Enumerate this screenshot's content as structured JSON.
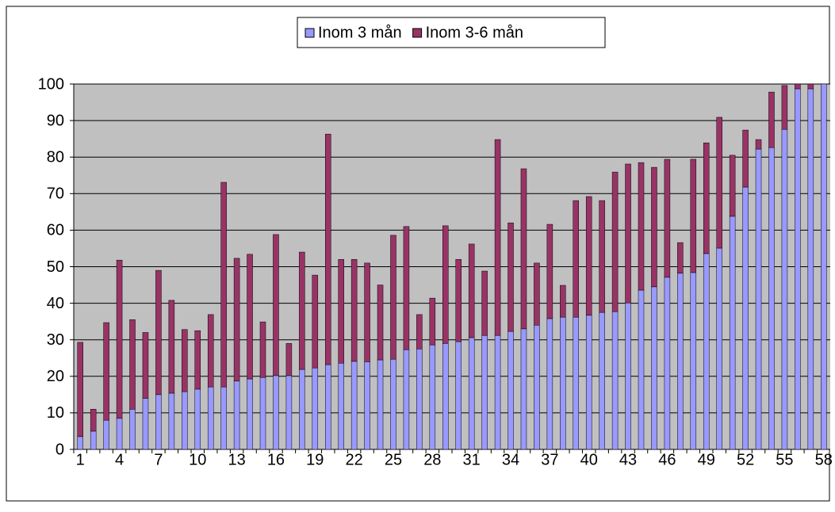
{
  "chart_data": {
    "type": "stacked_bar",
    "categories": [
      "1",
      null,
      null,
      "4",
      null,
      null,
      "7",
      null,
      null,
      "10",
      null,
      null,
      "13",
      null,
      null,
      "16",
      null,
      null,
      "19",
      null,
      null,
      "22",
      null,
      null,
      "25",
      null,
      null,
      "28",
      null,
      null,
      "31",
      null,
      null,
      "34",
      null,
      null,
      "37",
      null,
      null,
      "40",
      null,
      null,
      "43",
      null,
      null,
      "46",
      null,
      null,
      "49",
      null,
      null,
      "52",
      null,
      null,
      "55",
      null,
      null,
      "58"
    ],
    "series": [
      {
        "name": "Inom 3 mån",
        "color": "#9999ff",
        "values": [
          3.5,
          5,
          8,
          8.5,
          11,
          14,
          15,
          15.4,
          15.8,
          16.5,
          17.1,
          17.1,
          18.7,
          19.3,
          19.7,
          20.2,
          20.2,
          21.9,
          22.3,
          23.2,
          23.6,
          24.1,
          24,
          24.5,
          24.7,
          27.3,
          27.5,
          28.6,
          29,
          29.5,
          30.6,
          31.2,
          31.2,
          32.3,
          33,
          34,
          35.8,
          36.2,
          36.2,
          36.7,
          37.5,
          37.7,
          40.1,
          43.6,
          44.5,
          47.1,
          48.2,
          48.4,
          53.6,
          55.1,
          63.8,
          71.8,
          82.2,
          82.6,
          87.6,
          98.7,
          98.7,
          100
        ]
      },
      {
        "name": "Inom 3-6 mån",
        "color": "#993366",
        "values": [
          25.8,
          6,
          26.7,
          43.3,
          24.5,
          18,
          34,
          25.4,
          17,
          16,
          19.8,
          56,
          33.6,
          34.1,
          15.2,
          38.6,
          8.8,
          32.1,
          25.4,
          63.1,
          28.4,
          27.9,
          27,
          20.5,
          33.9,
          33.7,
          9.4,
          12.8,
          32.2,
          22.5,
          25.6,
          17.6,
          53.6,
          29.7,
          43.8,
          17,
          25.8,
          8.7,
          31.9,
          32.5,
          30.6,
          38.2,
          38,
          34.9,
          32.7,
          32.3,
          8.4,
          31,
          30.3,
          35.8,
          16.7,
          15.6,
          2.6,
          15.2,
          12,
          1.3,
          1.3,
          0
        ]
      }
    ],
    "ylim": [
      0,
      100
    ],
    "yticks": [
      0,
      10,
      20,
      30,
      40,
      50,
      60,
      70,
      80,
      90,
      100
    ],
    "grid": true,
    "legend": "top"
  }
}
